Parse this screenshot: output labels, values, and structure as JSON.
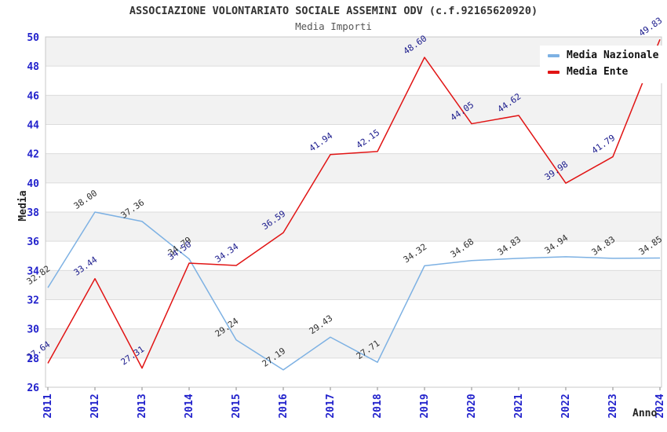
{
  "title": "ASSOCIAZIONE VOLONTARIATO SOCIALE ASSEMINI ODV (c.f.92165620920)",
  "subtitle": "Media Importi",
  "chart_data": {
    "type": "line",
    "title": "ASSOCIAZIONE VOLONTARIATO SOCIALE ASSEMINI ODV (c.f.92165620920)",
    "subtitle": "Media Importi",
    "xlabel": "Anno",
    "ylabel": "Media",
    "x": [
      2011,
      2012,
      2013,
      2014,
      2015,
      2016,
      2017,
      2018,
      2019,
      2020,
      2021,
      2022,
      2023,
      2024
    ],
    "series": [
      {
        "name": "Media Nazionale",
        "color": "#7db1e3",
        "label_color": "#303030",
        "values": [
          32.82,
          38.0,
          37.36,
          34.79,
          29.24,
          27.19,
          29.43,
          27.71,
          34.32,
          34.68,
          34.83,
          34.94,
          34.83,
          34.85
        ]
      },
      {
        "name": "Media Ente",
        "color": "#e11414",
        "label_color": "#1a1a8c",
        "values": [
          27.64,
          33.44,
          27.31,
          34.5,
          34.34,
          36.59,
          41.94,
          42.15,
          48.6,
          44.05,
          44.62,
          39.98,
          41.79,
          49.83
        ]
      }
    ],
    "ylim": [
      26,
      50
    ],
    "ytick_step": 2,
    "grid": "horizontal-bands",
    "legend_position": "top-right"
  },
  "colors": {
    "axis_text": "#2222cc",
    "band_gray": "#f2f2f2",
    "band_white": "#ffffff",
    "gridline": "#dcdcdc",
    "border": "#c8c8c8",
    "tick": "#888888"
  }
}
